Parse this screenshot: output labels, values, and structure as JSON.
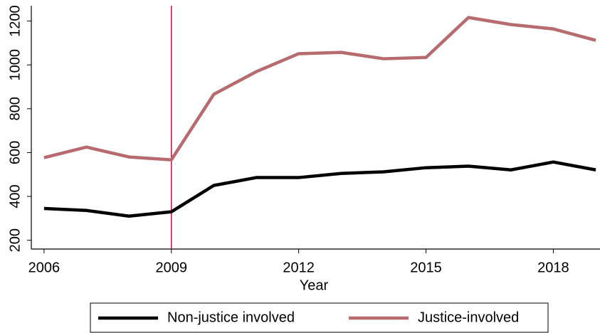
{
  "chart_data": {
    "type": "line",
    "x_label": "Year",
    "x": [
      2006,
      2007,
      2008,
      2009,
      2010,
      2011,
      2012,
      2013,
      2014,
      2015,
      2016,
      2017,
      2018,
      2019
    ],
    "series": [
      {
        "name": "Non-justice involved",
        "color": "#000000",
        "values": [
          345,
          336,
          310,
          330,
          450,
          486,
          486,
          505,
          512,
          531,
          538,
          521,
          557,
          521
        ]
      },
      {
        "name": "Justice-involved",
        "color": "#b86b6f",
        "values": [
          577,
          625,
          580,
          567,
          866,
          969,
          1051,
          1057,
          1028,
          1034,
          1216,
          1184,
          1164,
          1112
        ]
      }
    ],
    "xlim": [
      2005.7,
      2019.1
    ],
    "xticks": [
      2006,
      2009,
      2012,
      2015,
      2018
    ],
    "ylim": [
      160,
      1270
    ],
    "yticks": [
      200,
      400,
      600,
      800,
      1000,
      1200
    ],
    "vline": {
      "x": 2009,
      "color": "#b0134a"
    },
    "legend": "bottom",
    "grid": false
  }
}
